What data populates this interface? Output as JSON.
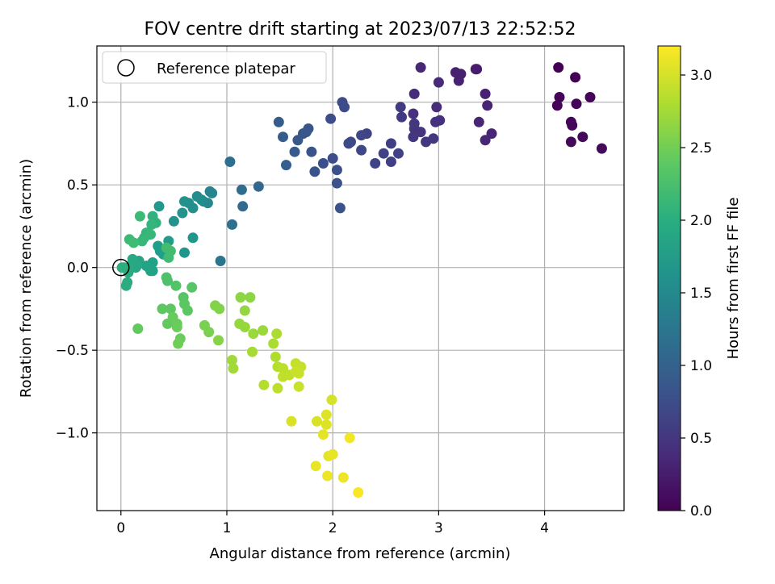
{
  "chart_data": {
    "type": "scatter",
    "title": "FOV centre drift starting at 2023/07/13 22:52:52",
    "xlabel": "Angular distance from reference (arcmin)",
    "ylabel": "Rotation from reference (arcmin)",
    "xlim": [
      -0.227,
      4.75
    ],
    "ylim": [
      -1.47,
      1.34
    ],
    "xticks": [
      0,
      1,
      2,
      3,
      4
    ],
    "xtick_labels": [
      "0",
      "1",
      "2",
      "3",
      "4"
    ],
    "yticks": [
      -1.0,
      -0.5,
      0.0,
      0.5,
      1.0
    ],
    "ytick_labels": [
      "−1.0",
      "−0.5",
      "0.0",
      "0.5",
      "1.0"
    ],
    "grid": true,
    "legend": {
      "placement": "top-left",
      "label": "Reference platepar"
    },
    "reference_point": {
      "x": 0.0,
      "y": 0.0
    },
    "colorbar": {
      "label": "Hours from first FF file",
      "colormap": "viridis",
      "range": [
        0,
        3.2
      ],
      "ticks": [
        0.0,
        0.5,
        1.0,
        1.5,
        2.0,
        2.5,
        3.0
      ],
      "tick_labels": [
        "0.0",
        "0.5",
        "1.0",
        "1.5",
        "2.0",
        "2.5",
        "3.0"
      ]
    },
    "point_fields": [
      "x",
      "y",
      "hours"
    ],
    "points": [
      [
        4.13,
        1.21,
        0.0
      ],
      [
        4.29,
        1.15,
        0.0
      ],
      [
        4.14,
        1.03,
        0.02
      ],
      [
        4.12,
        0.98,
        0.02
      ],
      [
        4.3,
        0.99,
        0.03
      ],
      [
        4.43,
        1.03,
        0.03
      ],
      [
        4.25,
        0.88,
        0.05
      ],
      [
        4.26,
        0.86,
        0.05
      ],
      [
        4.36,
        0.79,
        0.07
      ],
      [
        4.25,
        0.76,
        0.07
      ],
      [
        4.54,
        0.72,
        0.08
      ],
      [
        3.35,
        1.2,
        0.25
      ],
      [
        3.36,
        1.2,
        0.25
      ],
      [
        3.16,
        1.18,
        0.28
      ],
      [
        3.21,
        1.17,
        0.28
      ],
      [
        3.19,
        1.13,
        0.3
      ],
      [
        3.44,
        1.05,
        0.3
      ],
      [
        3.46,
        0.98,
        0.32
      ],
      [
        3.5,
        0.81,
        0.33
      ],
      [
        3.38,
        0.88,
        0.33
      ],
      [
        3.44,
        0.77,
        0.35
      ],
      [
        2.83,
        1.21,
        0.35
      ],
      [
        3.0,
        1.12,
        0.38
      ],
      [
        2.98,
        0.97,
        0.4
      ],
      [
        2.77,
        1.05,
        0.4
      ],
      [
        2.76,
        0.93,
        0.45
      ],
      [
        2.97,
        0.88,
        0.45
      ],
      [
        3.01,
        0.89,
        0.45
      ],
      [
        2.77,
        0.84,
        0.48
      ],
      [
        2.83,
        0.82,
        0.48
      ],
      [
        2.76,
        0.79,
        0.5
      ],
      [
        2.88,
        0.76,
        0.5
      ],
      [
        2.95,
        0.78,
        0.52
      ],
      [
        2.77,
        0.87,
        0.52
      ],
      [
        2.64,
        0.97,
        0.55
      ],
      [
        2.65,
        0.91,
        0.55
      ],
      [
        2.55,
        0.75,
        0.6
      ],
      [
        2.55,
        0.64,
        0.6
      ],
      [
        2.48,
        0.69,
        0.62
      ],
      [
        2.62,
        0.69,
        0.62
      ],
      [
        2.4,
        0.63,
        0.65
      ],
      [
        2.32,
        0.81,
        0.65
      ],
      [
        2.27,
        0.8,
        0.68
      ],
      [
        2.27,
        0.71,
        0.68
      ],
      [
        2.17,
        0.76,
        0.7
      ],
      [
        2.15,
        0.75,
        0.7
      ],
      [
        2.09,
        1.0,
        0.72
      ],
      [
        2.11,
        0.97,
        0.72
      ],
      [
        1.98,
        0.9,
        0.75
      ],
      [
        2.0,
        0.66,
        0.75
      ],
      [
        1.91,
        0.63,
        0.78
      ],
      [
        2.04,
        0.59,
        0.78
      ],
      [
        2.04,
        0.51,
        0.8
      ],
      [
        2.07,
        0.36,
        0.8
      ],
      [
        1.83,
        0.58,
        0.82
      ],
      [
        1.8,
        0.7,
        0.82
      ],
      [
        1.77,
        0.84,
        0.85
      ],
      [
        1.72,
        0.81,
        0.85
      ],
      [
        1.75,
        0.82,
        0.87
      ],
      [
        1.67,
        0.77,
        0.87
      ],
      [
        1.64,
        0.7,
        0.9
      ],
      [
        1.53,
        0.79,
        0.92
      ],
      [
        1.49,
        0.88,
        0.92
      ],
      [
        1.56,
        0.62,
        0.95
      ],
      [
        1.3,
        0.49,
        1.05
      ],
      [
        1.15,
        0.37,
        1.1
      ],
      [
        1.14,
        0.47,
        1.12
      ],
      [
        1.03,
        0.64,
        1.15
      ],
      [
        1.05,
        0.26,
        1.18
      ],
      [
        0.94,
        0.04,
        1.25
      ],
      [
        0.84,
        0.46,
        1.45
      ],
      [
        0.86,
        0.45,
        1.45
      ],
      [
        0.82,
        0.39,
        1.5
      ],
      [
        0.78,
        0.4,
        1.5
      ],
      [
        0.76,
        0.41,
        1.55
      ],
      [
        0.72,
        0.43,
        1.55
      ],
      [
        0.68,
        0.36,
        1.6
      ],
      [
        0.64,
        0.39,
        1.6
      ],
      [
        0.6,
        0.4,
        1.62
      ],
      [
        0.58,
        0.33,
        1.65
      ],
      [
        0.5,
        0.28,
        1.65
      ],
      [
        0.6,
        0.09,
        1.68
      ],
      [
        0.68,
        0.18,
        1.68
      ],
      [
        0.36,
        0.37,
        1.72
      ],
      [
        0.45,
        0.16,
        1.75
      ],
      [
        0.35,
        0.13,
        1.78
      ],
      [
        0.37,
        0.1,
        1.78
      ],
      [
        0.4,
        0.08,
        1.8
      ],
      [
        0.3,
        0.03,
        1.82
      ],
      [
        0.3,
        -0.02,
        1.82
      ],
      [
        0.28,
        -0.02,
        1.85
      ],
      [
        0.24,
        0.01,
        1.85
      ],
      [
        0.17,
        0.04,
        1.88
      ],
      [
        0.15,
        0.01,
        1.9
      ],
      [
        0.14,
        0.0,
        1.9
      ],
      [
        0.11,
        0.05,
        1.92
      ],
      [
        0.09,
        0.01,
        1.92
      ],
      [
        0.07,
        -0.03,
        1.95
      ],
      [
        0.06,
        -0.09,
        1.95
      ],
      [
        0.05,
        -0.11,
        1.97
      ],
      [
        0.03,
        0.0,
        1.98
      ],
      [
        0.01,
        0.0,
        2.0
      ],
      [
        0.3,
        0.31,
        2.05
      ],
      [
        0.33,
        0.27,
        2.05
      ],
      [
        0.29,
        0.26,
        2.1
      ],
      [
        0.24,
        0.21,
        2.1
      ],
      [
        0.22,
        0.18,
        2.12
      ],
      [
        0.2,
        0.16,
        2.15
      ],
      [
        0.28,
        0.2,
        2.15
      ],
      [
        0.18,
        0.31,
        2.18
      ],
      [
        0.08,
        0.17,
        2.18
      ],
      [
        0.12,
        0.15,
        2.2
      ],
      [
        0.45,
        0.06,
        2.2
      ],
      [
        0.43,
        0.12,
        2.22
      ],
      [
        0.47,
        0.1,
        2.22
      ],
      [
        0.43,
        -0.06,
        2.3
      ],
      [
        0.44,
        -0.08,
        2.3
      ],
      [
        0.52,
        -0.11,
        2.32
      ],
      [
        0.67,
        -0.12,
        2.35
      ],
      [
        0.59,
        -0.18,
        2.35
      ],
      [
        0.6,
        -0.22,
        2.38
      ],
      [
        0.63,
        -0.26,
        2.38
      ],
      [
        0.39,
        -0.25,
        2.4
      ],
      [
        0.47,
        -0.25,
        2.4
      ],
      [
        0.16,
        -0.37,
        2.42
      ],
      [
        0.44,
        -0.34,
        2.42
      ],
      [
        0.49,
        -0.3,
        2.45
      ],
      [
        0.53,
        -0.34,
        2.45
      ],
      [
        0.53,
        -0.36,
        2.47
      ],
      [
        0.56,
        -0.43,
        2.47
      ],
      [
        0.54,
        -0.46,
        2.5
      ],
      [
        0.79,
        -0.35,
        2.55
      ],
      [
        0.83,
        -0.39,
        2.55
      ],
      [
        0.89,
        -0.23,
        2.6
      ],
      [
        0.93,
        -0.25,
        2.6
      ],
      [
        0.92,
        -0.44,
        2.62
      ],
      [
        1.13,
        -0.18,
        2.65
      ],
      [
        1.22,
        -0.18,
        2.65
      ],
      [
        1.17,
        -0.26,
        2.68
      ],
      [
        1.12,
        -0.34,
        2.7
      ],
      [
        1.17,
        -0.36,
        2.7
      ],
      [
        1.25,
        -0.4,
        2.72
      ],
      [
        1.34,
        -0.38,
        2.72
      ],
      [
        1.05,
        -0.56,
        2.75
      ],
      [
        1.06,
        -0.61,
        2.75
      ],
      [
        1.24,
        -0.51,
        2.78
      ],
      [
        1.44,
        -0.46,
        2.8
      ],
      [
        1.47,
        -0.4,
        2.8
      ],
      [
        1.46,
        -0.54,
        2.82
      ],
      [
        1.48,
        -0.6,
        2.85
      ],
      [
        1.35,
        -0.71,
        2.85
      ],
      [
        1.48,
        -0.73,
        2.88
      ],
      [
        1.53,
        -0.61,
        2.88
      ],
      [
        1.53,
        -0.66,
        2.9
      ],
      [
        1.59,
        -0.65,
        2.9
      ],
      [
        1.65,
        -0.58,
        2.92
      ],
      [
        1.7,
        -0.6,
        2.92
      ],
      [
        1.68,
        -0.64,
        2.95
      ],
      [
        1.65,
        -0.63,
        2.95
      ],
      [
        1.68,
        -0.72,
        2.95
      ],
      [
        1.99,
        -0.8,
        3.0
      ],
      [
        1.61,
        -0.93,
        3.02
      ],
      [
        1.85,
        -0.93,
        3.02
      ],
      [
        1.94,
        -0.89,
        3.05
      ],
      [
        1.94,
        -0.95,
        3.05
      ],
      [
        1.91,
        -1.01,
        3.08
      ],
      [
        1.96,
        -1.14,
        3.08
      ],
      [
        2.0,
        -1.13,
        3.1
      ],
      [
        1.84,
        -1.2,
        3.1
      ],
      [
        1.95,
        -1.26,
        3.12
      ],
      [
        2.1,
        -1.27,
        3.12
      ],
      [
        2.16,
        -1.03,
        3.15
      ],
      [
        2.24,
        -1.36,
        3.18
      ]
    ]
  }
}
